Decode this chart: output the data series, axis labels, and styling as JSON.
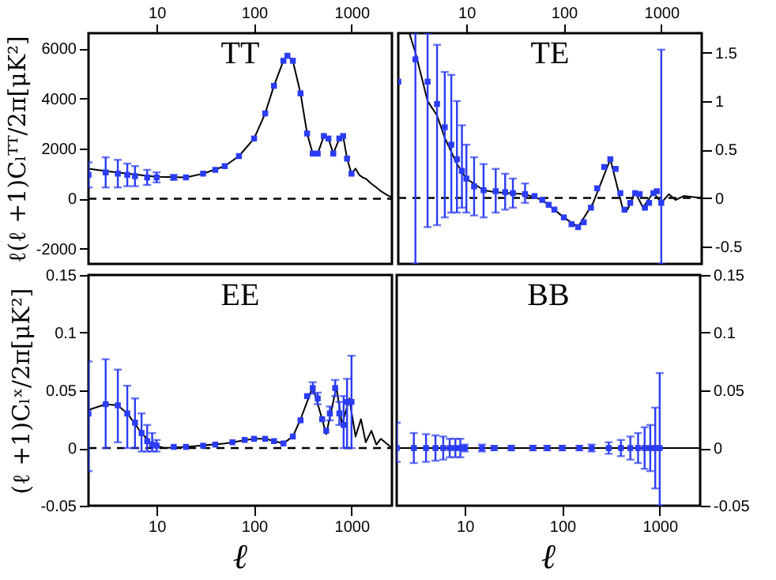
{
  "chart_data": [
    {
      "type": "scatter",
      "title": "TT",
      "ylabel": "ℓ(ℓ +1)Cₗᵀᵀ/2π[μK²]",
      "log": "x",
      "xlim": [
        2,
        2600
      ],
      "xticks": [
        10,
        100,
        1000
      ],
      "ylim": [
        -2600,
        6600
      ],
      "yticks": [
        -2000,
        0,
        2000,
        4000,
        6000
      ],
      "ref_lines": [
        {
          "axis": "y",
          "value": 0,
          "line_style": "dashed",
          "color": "#000000"
        }
      ],
      "series": [
        {
          "type": "line",
          "color": "#000000",
          "x": [
            2,
            3,
            5,
            10,
            20,
            30,
            50,
            70,
            100,
            130,
            160,
            200,
            220,
            250,
            300,
            350,
            400,
            450,
            520,
            580,
            650,
            750,
            820,
            900,
            1000,
            1100,
            1200,
            1300,
            1400,
            1600,
            1800,
            2000,
            2300,
            2600
          ],
          "values": [
            1200,
            1100,
            1000,
            870,
            850,
            1000,
            1300,
            1700,
            2400,
            3400,
            4500,
            5500,
            5700,
            5500,
            4200,
            2600,
            1800,
            1800,
            2500,
            2400,
            1800,
            2400,
            2500,
            1600,
            1000,
            1200,
            950,
            850,
            800,
            600,
            450,
            300,
            150,
            50
          ]
        },
        {
          "marker": "square",
          "color": "#2b3cf5",
          "x": [
            2,
            3,
            4,
            5,
            6,
            8,
            10,
            15,
            20,
            30,
            40,
            50,
            70,
            100,
            130,
            160,
            200,
            220,
            250,
            300,
            350,
            400,
            450,
            520,
            580,
            650,
            750,
            820,
            900,
            1000
          ],
          "values": [
            950,
            1050,
            1000,
            950,
            900,
            850,
            850,
            850,
            850,
            1000,
            1150,
            1300,
            1700,
            2400,
            3400,
            4500,
            5500,
            5700,
            5500,
            4200,
            2600,
            1800,
            1800,
            2500,
            2400,
            1800,
            2400,
            2500,
            1600,
            1000
          ],
          "errors": [
            500,
            600,
            550,
            450,
            400,
            300,
            200,
            100,
            null,
            null,
            null,
            null,
            null,
            null,
            null,
            null,
            null,
            null,
            null,
            null,
            null,
            null,
            null,
            null,
            null,
            null,
            null,
            null,
            null,
            null
          ]
        }
      ]
    },
    {
      "type": "scatter",
      "title": "TE",
      "log": "x",
      "xlim": [
        2,
        2600
      ],
      "xticks": [
        10,
        100,
        1000
      ],
      "ylim": [
        -0.68,
        1.7
      ],
      "yticks": [
        -0.5,
        0,
        0.5,
        1,
        1.5
      ],
      "ref_lines": [
        {
          "axis": "y",
          "value": 0,
          "line_style": "dashed",
          "color": "#000000"
        }
      ],
      "series": [
        {
          "type": "line",
          "color": "#000000",
          "x": [
            2.6,
            3,
            4,
            5,
            6,
            8,
            10,
            15,
            20,
            40,
            60,
            100,
            140,
            200,
            300,
            400,
            450,
            540,
            650,
            830,
            1000,
            1200,
            1400,
            1700,
            2600
          ],
          "values": [
            1.7,
            1.5,
            1.0,
            0.85,
            0.62,
            0.35,
            0.2,
            0.08,
            0.06,
            0.04,
            -0.02,
            -0.2,
            -0.3,
            -0.05,
            0.4,
            -0.1,
            -0.12,
            0.06,
            -0.1,
            0.06,
            -0.05,
            0.04,
            -0.02,
            0.02,
            0
          ]
        },
        {
          "marker": "square",
          "color": "#2b3cf5",
          "x": [
            2,
            3,
            4,
            5,
            6,
            7,
            8,
            9,
            10,
            12,
            15,
            20,
            25,
            30,
            40,
            50,
            60,
            70,
            80,
            100,
            120,
            140,
            160,
            190,
            220,
            260,
            300,
            340,
            380,
            420,
            480,
            540,
            600,
            680,
            750,
            830,
            900,
            1000
          ],
          "values": [
            1.2,
            1.43,
            1.2,
            0.97,
            0.73,
            0.55,
            0.4,
            0.28,
            0.2,
            0.12,
            0.08,
            0.07,
            0.06,
            0.05,
            0.04,
            0.02,
            -0.02,
            -0.07,
            -0.12,
            -0.2,
            -0.27,
            -0.3,
            -0.25,
            -0.1,
            0.1,
            0.32,
            0.4,
            0.3,
            0.05,
            -0.12,
            -0.05,
            0.05,
            0.04,
            -0.1,
            -0.05,
            0.05,
            0.07,
            -0.05
          ],
          "errors": [
            null,
            [
              -0.68,
              1.7
            ],
            [
              -0.3,
              1.7
            ],
            [
              -0.28,
              1.58
            ],
            [
              -0.2,
              1.3
            ],
            [
              -0.15,
              1.27
            ],
            [
              -0.15,
              1.0
            ],
            [
              -0.1,
              0.75
            ],
            [
              -0.15,
              0.55
            ],
            [
              -0.18,
              0.42
            ],
            [
              -0.2,
              0.35
            ],
            [
              -0.15,
              0.3
            ],
            [
              -0.12,
              0.25
            ],
            [
              -0.1,
              0.2
            ],
            [
              -0.05,
              0.15
            ],
            null,
            null,
            null,
            null,
            null,
            null,
            null,
            null,
            null,
            null,
            null,
            null,
            null,
            null,
            null,
            null,
            null,
            null,
            null,
            null,
            null,
            null,
            [
              -0.68,
              1.53
            ]
          ]
        }
      ]
    },
    {
      "type": "scatter",
      "title": "EE",
      "ylabel": "(ℓ +1)Cₗˣ/2π[μK²]",
      "xlabel": "ℓ",
      "log": "x",
      "xlim": [
        2,
        2600
      ],
      "xticks": [
        10,
        100,
        1000
      ],
      "ylim": [
        -0.05,
        0.15
      ],
      "yticks": [
        -0.05,
        0,
        0.05,
        0.1,
        0.15
      ],
      "ref_lines": [
        {
          "axis": "y",
          "value": 0,
          "line_style": "dashed",
          "color": "#000000"
        }
      ],
      "series": [
        {
          "type": "line",
          "color": "#000000",
          "x": [
            2,
            3,
            4,
            5,
            7,
            9,
            12,
            20,
            50,
            100,
            130,
            200,
            250,
            300,
            400,
            500,
            550,
            700,
            800,
            950,
            1100,
            1250,
            1400,
            1600,
            1800,
            2000,
            2600
          ],
          "values": [
            0.033,
            0.038,
            0.037,
            0.03,
            0.013,
            0.003,
            0.0,
            0.001,
            0.004,
            0.008,
            0.008,
            0.004,
            0.01,
            0.025,
            0.053,
            0.025,
            0.012,
            0.053,
            0.02,
            0.043,
            0.01,
            0.025,
            0.005,
            0.015,
            0.003,
            0.008,
            0.0
          ]
        },
        {
          "marker": "square",
          "color": "#2b3cf5",
          "x": [
            2,
            3,
            4,
            5,
            6,
            7,
            8,
            9,
            10,
            15,
            20,
            30,
            40,
            60,
            80,
            100,
            130,
            160,
            200,
            250,
            300,
            350,
            400,
            450,
            500,
            550,
            600,
            680,
            750,
            830,
            900,
            1000
          ],
          "values": [
            0.03,
            0.038,
            0.037,
            0.03,
            0.022,
            0.013,
            0.006,
            0.003,
            0.002,
            0.001,
            0.001,
            0.002,
            0.003,
            0.005,
            0.007,
            0.008,
            0.008,
            0.006,
            0.004,
            0.01,
            0.024,
            0.045,
            0.052,
            0.043,
            0.025,
            0.015,
            0.03,
            0.052,
            0.03,
            0.02,
            0.04,
            0.04
          ],
          "errors": [
            [
              -0.02,
              0.075
            ],
            [
              0.0,
              0.077
            ],
            [
              0.005,
              0.068
            ],
            [
              0.0,
              0.054
            ],
            [
              0.0,
              0.043
            ],
            [
              -0.003,
              0.03
            ],
            [
              -0.003,
              0.02
            ],
            [
              -0.003,
              0.013
            ],
            0.005,
            null,
            null,
            null,
            null,
            null,
            null,
            null,
            null,
            null,
            null,
            null,
            null,
            null,
            0.005,
            0.005,
            null,
            null,
            0.006,
            0.007,
            0.01,
            [
              0.0,
              0.045
            ],
            [
              0.0,
              0.06
            ],
            [
              0.0,
              0.08
            ]
          ]
        }
      ]
    },
    {
      "type": "scatter",
      "title": "BB",
      "xlabel": "ℓ",
      "log": "x",
      "xlim": [
        2,
        2600
      ],
      "xticks": [
        10,
        100,
        1000
      ],
      "ylim": [
        -0.05,
        0.15
      ],
      "yticks": [
        -0.05,
        0,
        0.05,
        0.1,
        0.15
      ],
      "series": [
        {
          "type": "line",
          "color": "#000000",
          "x": [
            2,
            2600
          ],
          "values": [
            0,
            0
          ]
        },
        {
          "marker": "square",
          "color": "#2b3cf5",
          "x": [
            2,
            3,
            4,
            5,
            6,
            7,
            8,
            9,
            10,
            15,
            20,
            30,
            50,
            70,
            100,
            150,
            200,
            300,
            400,
            500,
            600,
            700,
            800,
            900,
            1000
          ],
          "values": [
            0,
            0,
            0,
            0,
            0,
            0,
            0,
            0,
            0,
            0,
            0,
            0,
            0,
            0,
            0,
            0,
            0,
            0,
            0,
            0,
            0,
            0,
            0,
            0,
            0
          ],
          "errors": [
            [
              -0.012,
              0.022
            ],
            0.013,
            0.012,
            0.011,
            0.01,
            0.008,
            0.008,
            0.008,
            0.003,
            0.003,
            0.002,
            0.002,
            0.002,
            0.002,
            0.002,
            0.002,
            0.003,
            0.005,
            0.007,
            0.01,
            0.013,
            0.018,
            0.02,
            0.035,
            [
              -0.05,
              0.065
            ]
          ]
        }
      ]
    }
  ]
}
